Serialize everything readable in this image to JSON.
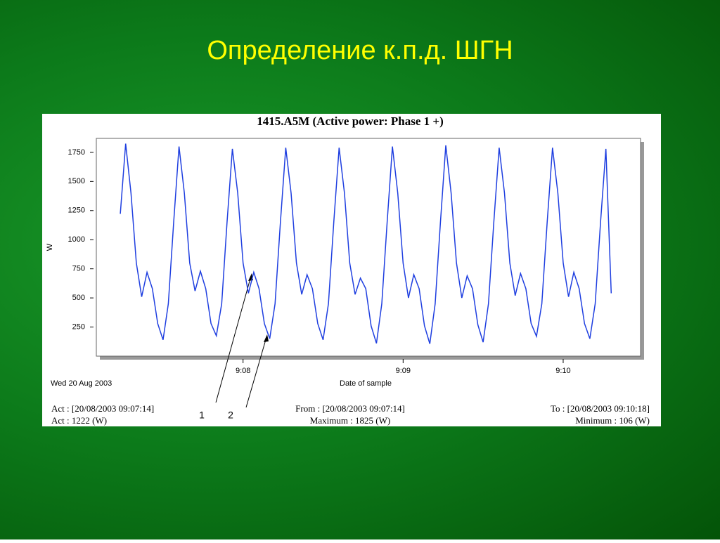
{
  "slide_title": "Определение к.п.д.  ШГН",
  "chart_data": {
    "type": "line",
    "title": "1415.A5M (Active power: Phase 1 +)",
    "y_label": "W",
    "x_label": "Date of sample",
    "date_label": "Wed 20 Aug 2003",
    "annotations": [
      "1",
      "2"
    ],
    "footer": {
      "act_time": "Act : [20/08/2003 09:07:14]",
      "act_value": "Act : 1222 (W)",
      "from": "From : [20/08/2003 09:07:14]",
      "maximum": "Maximum : 1825 (W)",
      "to": "To : [20/08/2003 09:10:18]",
      "minimum": "Minimum : 106 (W)"
    },
    "xlim": [
      425,
      629
    ],
    "xticks": [
      {
        "value": 480,
        "label": "9:08"
      },
      {
        "value": 540,
        "label": "9:09"
      },
      {
        "value": 600,
        "label": "9:10"
      }
    ],
    "ylim": [
      0,
      1870
    ],
    "yticks": [
      250,
      500,
      750,
      1000,
      1250,
      1500,
      1750
    ],
    "x": [
      434,
      436,
      438,
      440,
      442,
      444,
      446,
      448,
      450,
      452,
      454,
      456,
      458,
      460,
      462,
      464,
      466,
      468,
      470,
      472,
      474,
      476,
      478,
      480,
      482,
      484,
      486,
      488,
      490,
      492,
      494,
      496,
      498,
      500,
      502,
      504,
      506,
      508,
      510,
      512,
      514,
      516,
      518,
      520,
      522,
      524,
      526,
      528,
      530,
      532,
      534,
      536,
      538,
      540,
      542,
      544,
      546,
      548,
      550,
      552,
      554,
      556,
      558,
      560,
      562,
      564,
      566,
      568,
      570,
      572,
      574,
      576,
      578,
      580,
      582,
      584,
      586,
      588,
      590,
      592,
      594,
      596,
      598,
      600,
      602,
      604,
      606,
      608,
      610,
      612,
      614,
      616,
      618
    ],
    "series": [
      {
        "name": "Active power: Phase 1 +",
        "color": "#1f3fe0",
        "values": [
          1222,
          1825,
          1400,
          800,
          510,
          720,
          580,
          280,
          140,
          450,
          1150,
          1800,
          1400,
          800,
          560,
          730,
          580,
          280,
          175,
          450,
          1150,
          1780,
          1400,
          800,
          540,
          720,
          580,
          280,
          150,
          450,
          1150,
          1790,
          1400,
          800,
          530,
          700,
          580,
          280,
          140,
          450,
          1150,
          1790,
          1400,
          800,
          530,
          670,
          580,
          260,
          110,
          450,
          1150,
          1800,
          1400,
          800,
          500,
          700,
          580,
          260,
          106,
          450,
          1150,
          1810,
          1400,
          800,
          500,
          690,
          580,
          270,
          120,
          450,
          1150,
          1790,
          1400,
          800,
          520,
          710,
          580,
          280,
          170,
          450,
          1150,
          1790,
          1400,
          800,
          510,
          720,
          580,
          280,
          150,
          450,
          1150,
          1780,
          540
        ]
      }
    ]
  }
}
